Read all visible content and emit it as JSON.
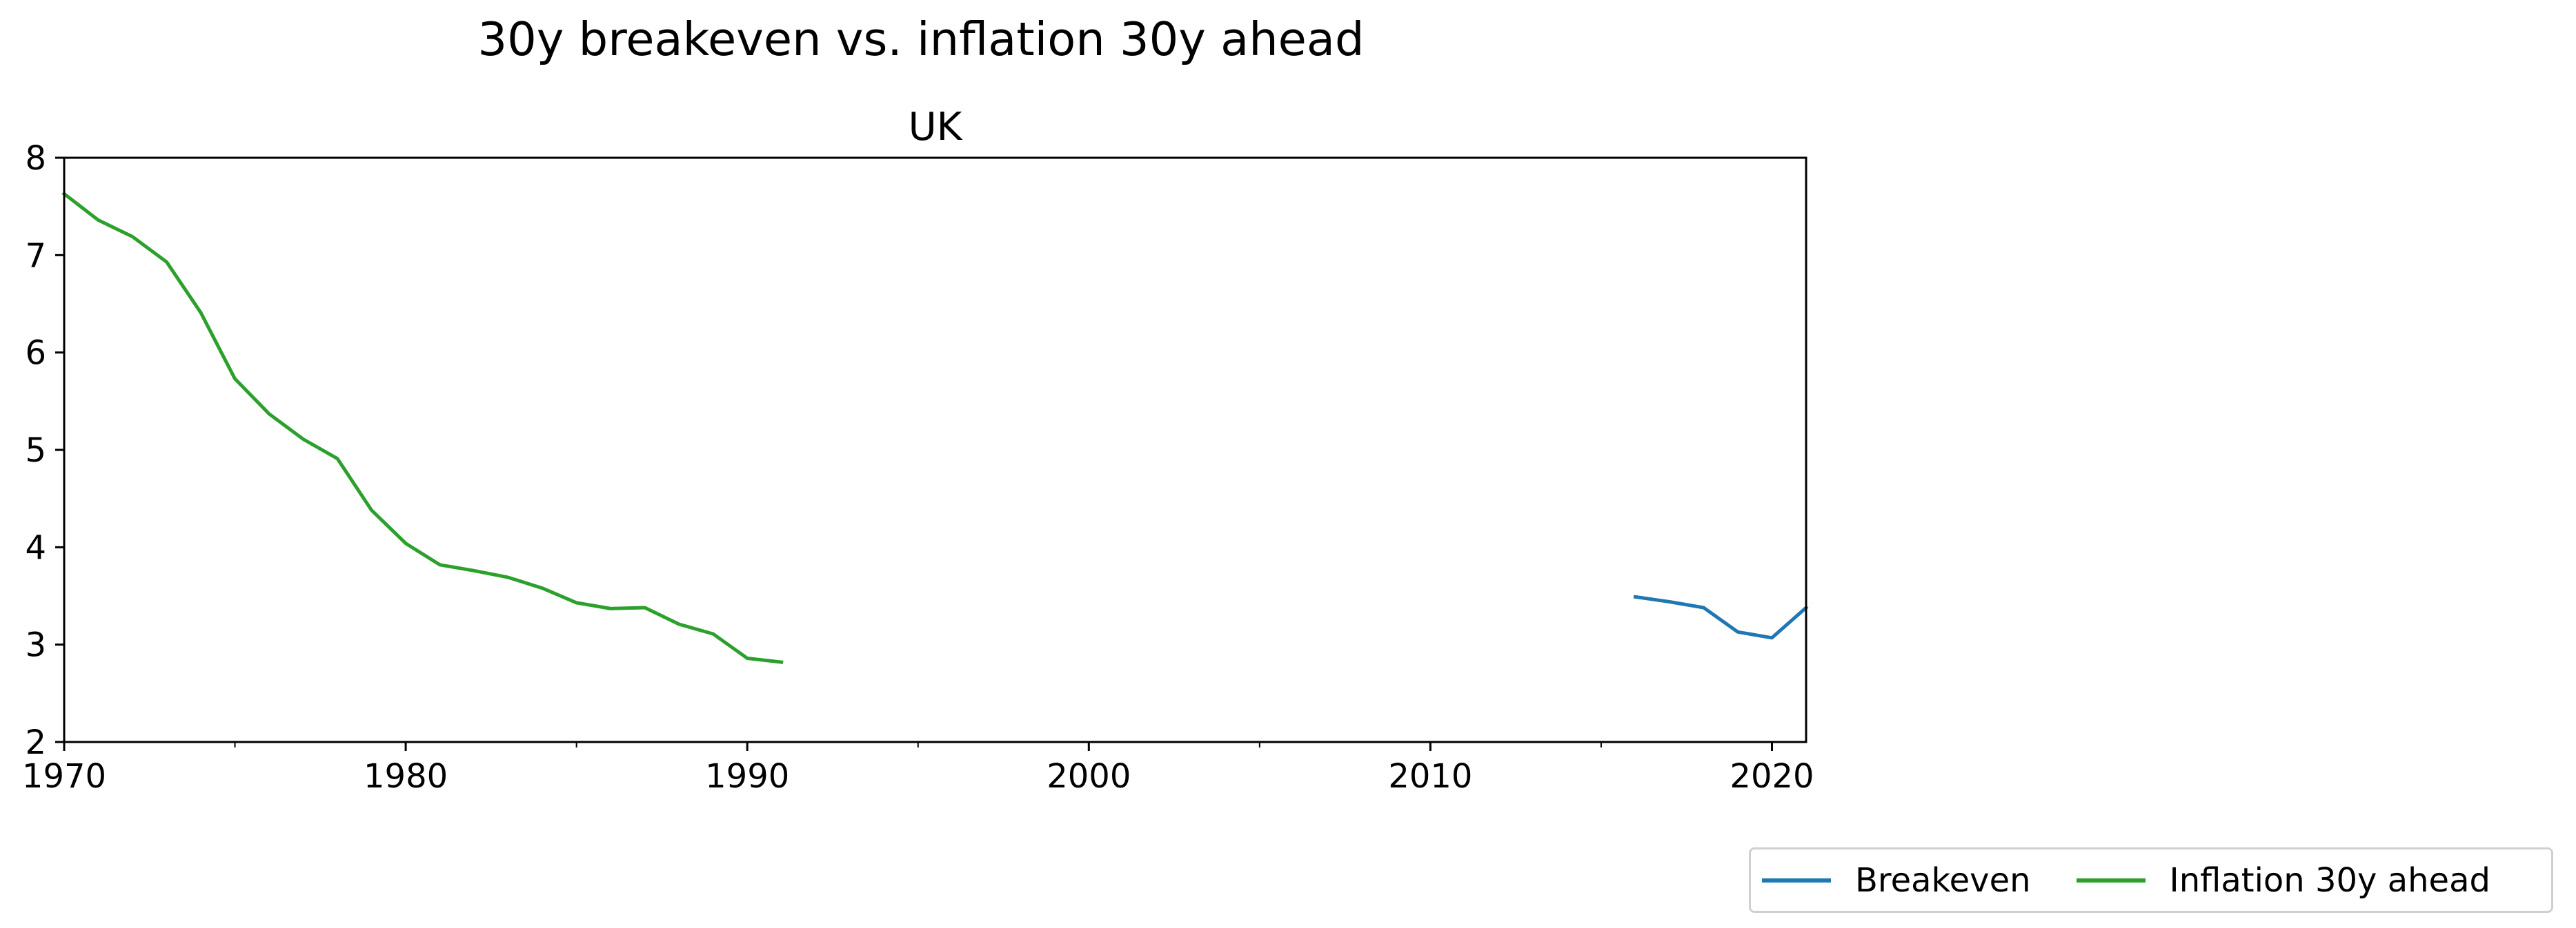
{
  "figure_title": "30y breakeven vs. inflation 30y ahead",
  "colors": {
    "breakeven": "#1f77b4",
    "inflation": "#2ca02c"
  },
  "chart_data": {
    "type": "line",
    "title": "UK",
    "xlabel": "",
    "ylabel": "",
    "xlim": [
      1970,
      2021
    ],
    "ylim": [
      2,
      8
    ],
    "xticks": [
      1970,
      1980,
      1990,
      2000,
      2010,
      2020
    ],
    "xticks_minor": [
      1975,
      1985,
      1995,
      2005,
      2015
    ],
    "yticks": [
      2,
      3,
      4,
      5,
      6,
      7,
      8
    ],
    "grid": false,
    "legend_position": "bottom-right",
    "series": [
      {
        "name": "Breakeven",
        "color": "#1f77b4",
        "x": [
          2016,
          2017,
          2018,
          2019,
          2020,
          2021
        ],
        "y": [
          3.49,
          3.44,
          3.38,
          3.13,
          3.07,
          3.38
        ]
      },
      {
        "name": "Inflation 30y ahead",
        "color": "#2ca02c",
        "x": [
          1970,
          1971,
          1972,
          1973,
          1974,
          1975,
          1976,
          1977,
          1978,
          1979,
          1980,
          1981,
          1982,
          1983,
          1984,
          1985,
          1986,
          1987,
          1988,
          1989,
          1990,
          1991
        ],
        "y": [
          7.63,
          7.36,
          7.19,
          6.93,
          6.41,
          5.73,
          5.37,
          5.11,
          4.91,
          4.38,
          4.04,
          3.82,
          3.76,
          3.69,
          3.58,
          3.43,
          3.37,
          3.38,
          3.21,
          3.11,
          2.86,
          2.82
        ]
      }
    ]
  }
}
